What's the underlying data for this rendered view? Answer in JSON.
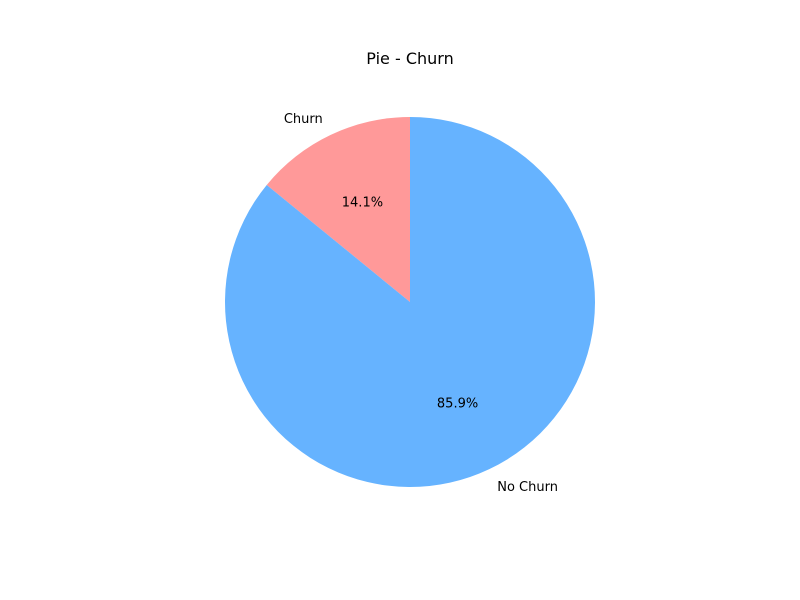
{
  "chart_data": {
    "type": "pie",
    "title": "Pie - Churn",
    "slices": [
      {
        "label": "Churn",
        "value": 14.1,
        "pct_text": "14.1%",
        "color": "#ff9999"
      },
      {
        "label": "No Churn",
        "value": 85.9,
        "pct_text": "85.9%",
        "color": "#66b3ff"
      }
    ],
    "start_angle": "90 degrees (top), counter-clockwise",
    "legend": "none"
  }
}
